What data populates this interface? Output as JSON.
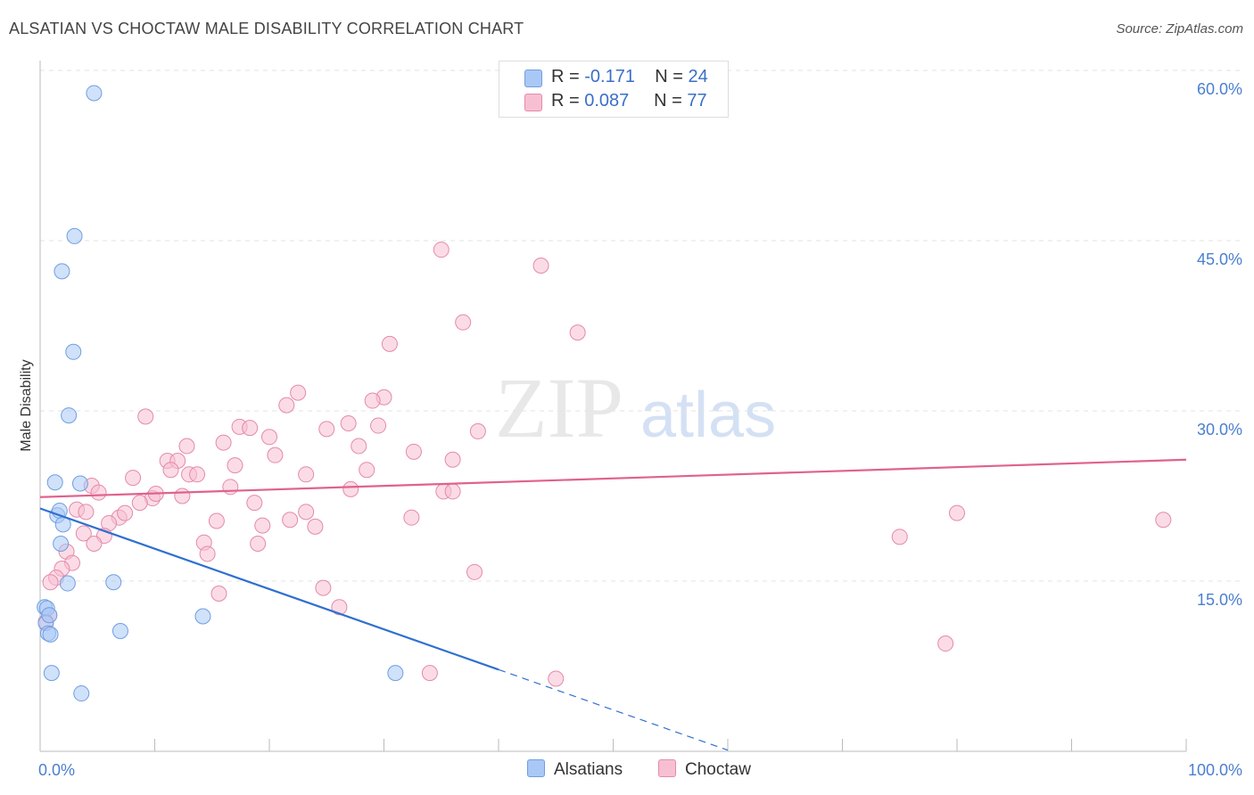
{
  "title": "ALSATIAN VS CHOCTAW MALE DISABILITY CORRELATION CHART",
  "source": "Source: ZipAtlas.com",
  "watermark": {
    "zip": "ZIP",
    "atlas": "atlas"
  },
  "legend": {
    "rows": [
      {
        "r_label": "R = ",
        "r_value": "-0.171",
        "n_label": "N = ",
        "n_value": "24",
        "color": "#a9c8f5",
        "border": "#6f9fe0"
      },
      {
        "r_label": "R = ",
        "r_value": "0.087",
        "n_label": "N = ",
        "n_value": "77",
        "color": "#f7c0d2",
        "border": "#e58aa8"
      }
    ]
  },
  "bottom_legend": [
    {
      "label": "Alsatians",
      "color": "#a9c8f5",
      "border": "#6f9fe0"
    },
    {
      "label": "Choctaw",
      "color": "#f7c0d2",
      "border": "#e58aa8"
    }
  ],
  "chart_data": {
    "type": "scatter",
    "title": "ALSATIAN VS CHOCTAW MALE DISABILITY CORRELATION CHART",
    "xlabel": "",
    "ylabel": "Male Disability",
    "xlim": [
      0,
      100
    ],
    "ylim": [
      0,
      60
    ],
    "x_tick_labels": [
      "0.0%",
      "100.0%"
    ],
    "y_ticks": [
      15,
      30,
      45,
      60
    ],
    "y_tick_labels": [
      "15.0%",
      "30.0%",
      "45.0%",
      "60.0%"
    ],
    "grid": true,
    "legend_position": "top-center",
    "series": [
      {
        "name": "Alsatians",
        "color": "#a9c8f5",
        "stroke": "#6f9fe0",
        "trend": {
          "x": [
            0,
            40
          ],
          "y": [
            21.4,
            7.2
          ],
          "color": "#2f6fd0",
          "dashed_to_x": 60
        },
        "points": [
          [
            4.7,
            58.0
          ],
          [
            3.0,
            45.4
          ],
          [
            1.9,
            42.3
          ],
          [
            2.9,
            35.2
          ],
          [
            2.5,
            29.6
          ],
          [
            1.3,
            23.7
          ],
          [
            3.5,
            23.6
          ],
          [
            1.5,
            20.8
          ],
          [
            1.7,
            21.2
          ],
          [
            2.0,
            20.0
          ],
          [
            1.8,
            18.3
          ],
          [
            2.4,
            14.8
          ],
          [
            6.4,
            14.9
          ],
          [
            0.4,
            12.7
          ],
          [
            0.6,
            12.6
          ],
          [
            0.5,
            11.3
          ],
          [
            0.7,
            10.4
          ],
          [
            0.9,
            10.3
          ],
          [
            7.0,
            10.6
          ],
          [
            14.2,
            11.9
          ],
          [
            1.0,
            6.9
          ],
          [
            3.6,
            5.1
          ],
          [
            31.0,
            6.9
          ],
          [
            0.8,
            12.0
          ]
        ]
      },
      {
        "name": "Choctaw",
        "color": "#f7c0d2",
        "stroke": "#e58aa8",
        "trend": {
          "x": [
            0,
            100
          ],
          "y": [
            22.4,
            25.7
          ],
          "color": "#e0628e"
        },
        "points": [
          [
            35.0,
            44.2
          ],
          [
            43.7,
            42.8
          ],
          [
            36.9,
            37.8
          ],
          [
            46.9,
            36.9
          ],
          [
            30.5,
            35.9
          ],
          [
            22.5,
            31.6
          ],
          [
            30.0,
            31.2
          ],
          [
            21.5,
            30.5
          ],
          [
            29.0,
            30.9
          ],
          [
            9.2,
            29.5
          ],
          [
            17.4,
            28.6
          ],
          [
            26.9,
            28.9
          ],
          [
            29.5,
            28.7
          ],
          [
            18.3,
            28.5
          ],
          [
            25.0,
            28.4
          ],
          [
            38.2,
            28.2
          ],
          [
            20.0,
            27.7
          ],
          [
            16.0,
            27.2
          ],
          [
            27.8,
            26.9
          ],
          [
            12.8,
            26.9
          ],
          [
            20.5,
            26.1
          ],
          [
            32.6,
            26.4
          ],
          [
            11.1,
            25.6
          ],
          [
            12.0,
            25.6
          ],
          [
            36.0,
            25.7
          ],
          [
            17.0,
            25.2
          ],
          [
            11.4,
            24.8
          ],
          [
            28.5,
            24.8
          ],
          [
            13.0,
            24.4
          ],
          [
            23.2,
            24.4
          ],
          [
            8.1,
            24.1
          ],
          [
            13.7,
            24.4
          ],
          [
            16.6,
            23.3
          ],
          [
            4.5,
            23.4
          ],
          [
            27.1,
            23.1
          ],
          [
            35.2,
            22.9
          ],
          [
            36.0,
            22.9
          ],
          [
            5.1,
            22.8
          ],
          [
            9.8,
            22.3
          ],
          [
            10.1,
            22.7
          ],
          [
            12.4,
            22.5
          ],
          [
            18.7,
            21.9
          ],
          [
            8.7,
            21.9
          ],
          [
            3.2,
            21.3
          ],
          [
            4.0,
            21.1
          ],
          [
            6.9,
            20.6
          ],
          [
            7.4,
            21.0
          ],
          [
            6.0,
            20.1
          ],
          [
            23.2,
            21.1
          ],
          [
            21.8,
            20.4
          ],
          [
            15.4,
            20.3
          ],
          [
            32.4,
            20.6
          ],
          [
            19.4,
            19.9
          ],
          [
            24.0,
            19.8
          ],
          [
            5.6,
            19.0
          ],
          [
            3.8,
            19.2
          ],
          [
            4.7,
            18.3
          ],
          [
            14.3,
            18.4
          ],
          [
            19.0,
            18.3
          ],
          [
            14.6,
            17.4
          ],
          [
            2.3,
            17.6
          ],
          [
            2.8,
            16.6
          ],
          [
            1.9,
            16.1
          ],
          [
            37.9,
            15.8
          ],
          [
            1.4,
            15.3
          ],
          [
            0.9,
            14.9
          ],
          [
            24.7,
            14.4
          ],
          [
            15.6,
            13.9
          ],
          [
            26.1,
            12.7
          ],
          [
            0.8,
            12.0
          ],
          [
            0.5,
            11.4
          ],
          [
            34.0,
            6.9
          ],
          [
            45.0,
            6.4
          ],
          [
            75.0,
            18.9
          ],
          [
            80.0,
            21.0
          ],
          [
            79.0,
            9.5
          ],
          [
            98.0,
            20.4
          ]
        ]
      }
    ]
  }
}
